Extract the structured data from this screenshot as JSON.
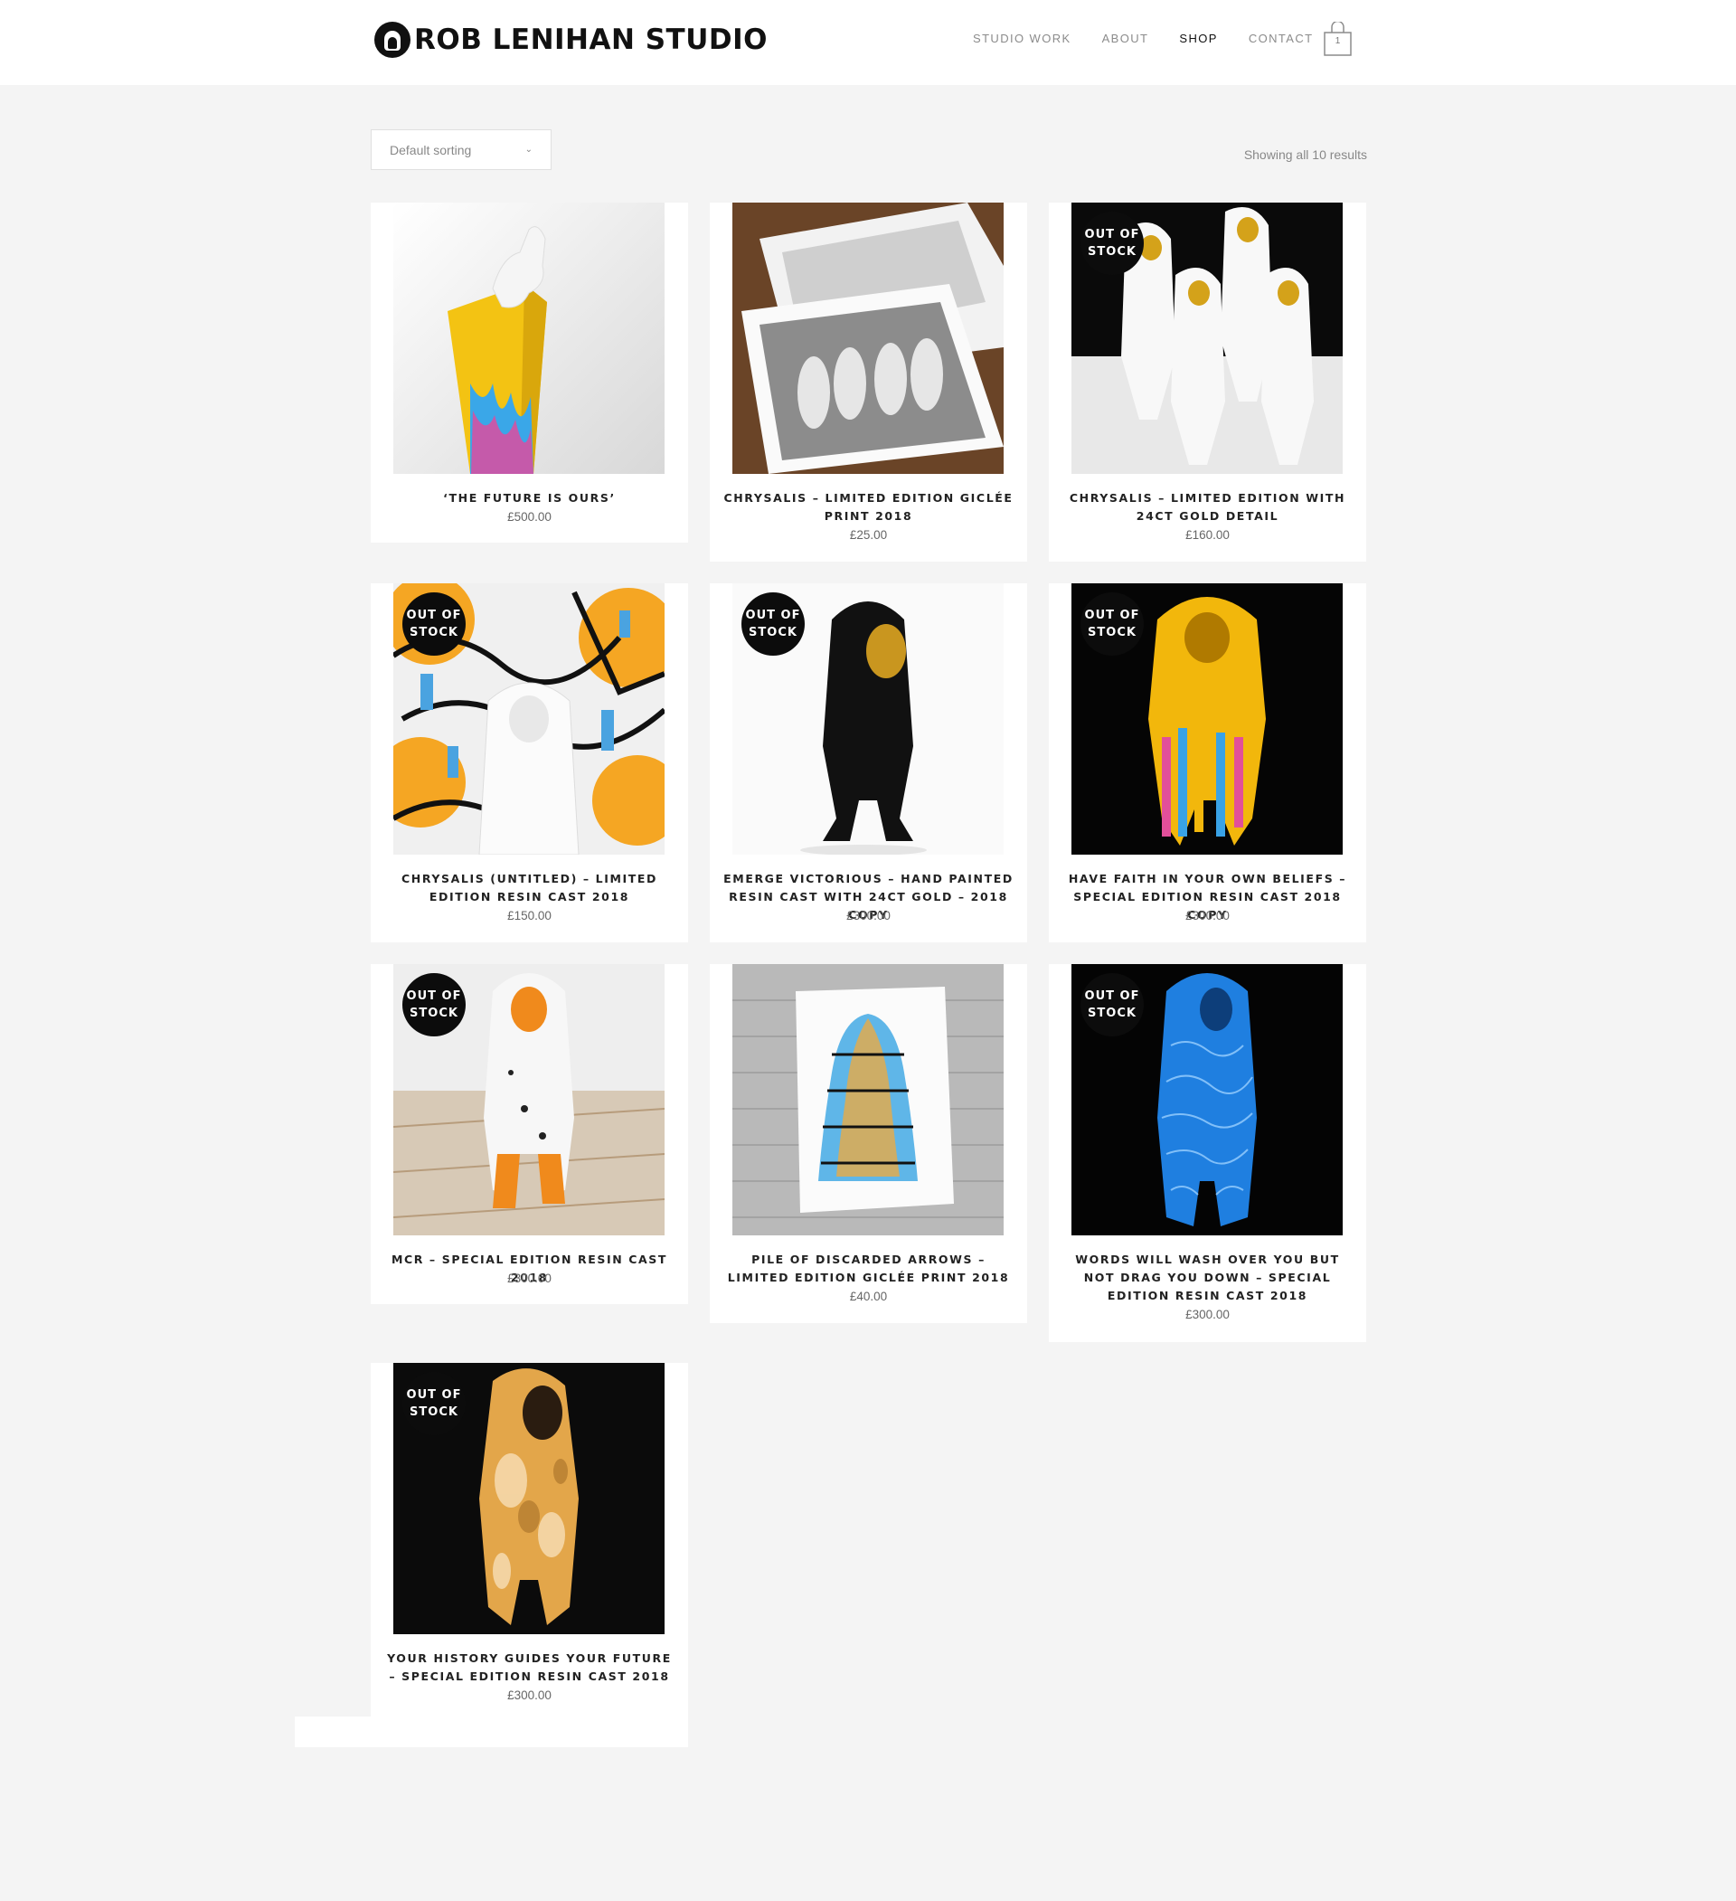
{
  "header": {
    "logo_text": "ROB LENIHAN STUDIO",
    "nav": [
      {
        "label": "STUDIO WORK",
        "active": false
      },
      {
        "label": "ABOUT",
        "active": false
      },
      {
        "label": "SHOP",
        "active": true
      },
      {
        "label": "CONTACT",
        "active": false
      }
    ],
    "cart_count": "1"
  },
  "toolbar": {
    "sorting_value": "Default sorting",
    "result_count": "Showing all 10 results"
  },
  "products": [
    {
      "title": "‘THE FUTURE IS OURS’",
      "price": "£500.00",
      "out_of_stock": false,
      "image": "yellow-pillar-with-white-hand-sculpture"
    },
    {
      "title": "CHRYSALIS – LIMITED EDITION GICLÉE PRINT 2018",
      "price": "£25.00",
      "out_of_stock": false,
      "image": "framed-prints-of-hooded-figures"
    },
    {
      "title": "CHRYSALIS – LIMITED EDITION WITH 24CT GOLD DETAIL",
      "price": "£160.00",
      "out_of_stock": true,
      "image": "white-hooded-figures-gold-faces"
    },
    {
      "title": "CHRYSALIS (UNTITLED) – LIMITED EDITION RESIN CAST 2018",
      "price": "£150.00",
      "out_of_stock": true,
      "image": "white-hooded-figure-graffiti-background"
    },
    {
      "title": "EMERGE VICTORIOUS – HAND PAINTED RESIN CAST WITH 24CT GOLD – 2018 COPY",
      "price": "£300.00",
      "out_of_stock": true,
      "image": "black-hooded-figure-gold-hood"
    },
    {
      "title": "HAVE FAITH IN YOUR OWN BELIEFS – SPECIAL EDITION RESIN CAST 2018 COPY",
      "price": "£300.00",
      "out_of_stock": true,
      "image": "yellow-dripping-hooded-figure"
    },
    {
      "title": "MCR – SPECIAL EDITION RESIN CAST 2018",
      "price": "£300.00",
      "out_of_stock": true,
      "image": "white-orange-bee-hooded-figure"
    },
    {
      "title": "PILE OF DISCARDED ARROWS – LIMITED EDITION GICLÉE PRINT 2018",
      "price": "£40.00",
      "out_of_stock": false,
      "image": "arrows-print-on-brick-wall"
    },
    {
      "title": "WORDS WILL WASH OVER YOU BUT NOT DRAG YOU DOWN – SPECIAL EDITION RESIN CAST 2018",
      "price": "£300.00",
      "out_of_stock": true,
      "image": "blue-calligraphy-hooded-figure"
    },
    {
      "title": "YOUR HISTORY GUIDES YOUR FUTURE – SPECIAL EDITION RESIN CAST 2018",
      "price": "£300.00",
      "out_of_stock": true,
      "image": "weathered-orange-hooded-figure"
    }
  ],
  "badge_text_line1": "OUT OF",
  "badge_text_line2": "STOCK",
  "colors": {
    "background": "#f4f4f4",
    "card": "#ffffff",
    "badge": "#0c0c0c",
    "nav_active": "#111111",
    "nav_inactive": "#8b8b8b"
  }
}
